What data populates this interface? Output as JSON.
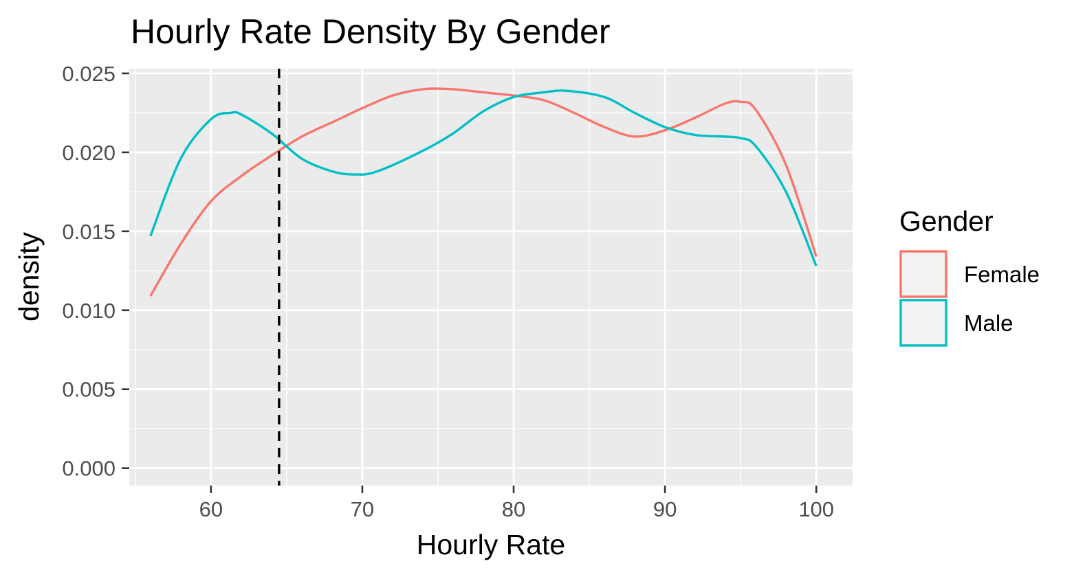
{
  "chart_data": {
    "type": "line",
    "title": "Hourly Rate Density By Gender",
    "xlabel": "Hourly Rate",
    "ylabel": "density",
    "xlim": [
      54.6,
      102.4
    ],
    "ylim": [
      -0.0011,
      0.0253
    ],
    "x_ticks": [
      60,
      70,
      80,
      90,
      100
    ],
    "x_tick_labels": [
      "60",
      "70",
      "80",
      "90",
      "100"
    ],
    "y_ticks": [
      0,
      0.005,
      0.01,
      0.015,
      0.02,
      0.025
    ],
    "y_tick_labels": [
      "0.000",
      "0.005",
      "0.010",
      "0.015",
      "0.020",
      "0.025"
    ],
    "grid": true,
    "panel_background": "#ebebeb",
    "legend": {
      "title": "Gender",
      "position": "right",
      "entries": [
        "Female",
        "Male"
      ]
    },
    "vline": {
      "x": 64.5,
      "style": "dashed",
      "color": "#000000"
    },
    "series": [
      {
        "name": "Female",
        "color": "#F8766D",
        "x": [
          56,
          58,
          60,
          62,
          64,
          66,
          68,
          70,
          72,
          74,
          76,
          78,
          80,
          82,
          84,
          86,
          88,
          90,
          92,
          94,
          95,
          96,
          98,
          100
        ],
        "y": [
          0.0109,
          0.0142,
          0.0169,
          0.0185,
          0.0198,
          0.021,
          0.0219,
          0.0228,
          0.0236,
          0.024,
          0.024,
          0.0238,
          0.0236,
          0.0233,
          0.0225,
          0.0216,
          0.021,
          0.0214,
          0.0222,
          0.0231,
          0.0232,
          0.0227,
          0.0192,
          0.0134
        ]
      },
      {
        "name": "Male",
        "color": "#00BFC4",
        "x": [
          56,
          58,
          60,
          61.3,
          62,
          64,
          66,
          68,
          69.5,
          71,
          74,
          76,
          78,
          80,
          82,
          83.5,
          86,
          88,
          90,
          92,
          94,
          95,
          96,
          98,
          100
        ],
        "y": [
          0.0147,
          0.0196,
          0.0221,
          0.0225,
          0.0224,
          0.0212,
          0.0196,
          0.0188,
          0.0186,
          0.0188,
          0.0201,
          0.0212,
          0.0226,
          0.0235,
          0.0238,
          0.0239,
          0.0235,
          0.0225,
          0.0216,
          0.0211,
          0.021,
          0.0209,
          0.0204,
          0.0175,
          0.0128
        ]
      }
    ]
  }
}
